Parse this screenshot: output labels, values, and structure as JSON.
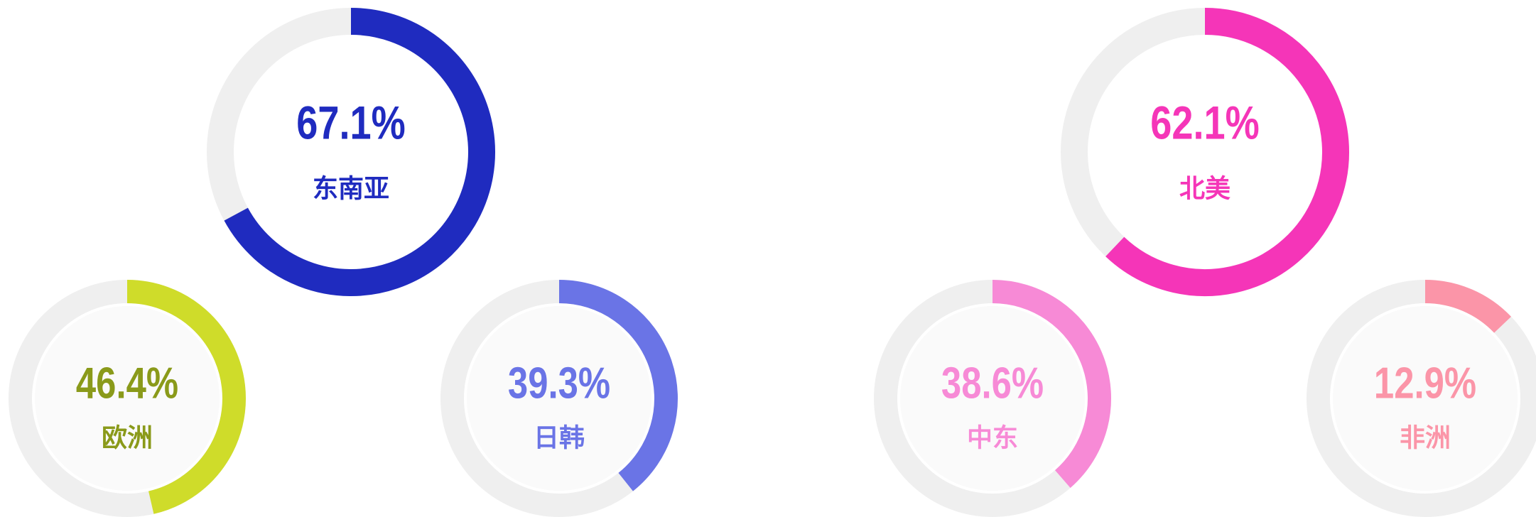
{
  "chart_data": [
    {
      "type": "donut",
      "title": "东南亚",
      "values": [
        67.1
      ],
      "value_labels": [
        "67.1%"
      ],
      "color": "#1f2bbf"
    },
    {
      "type": "donut",
      "title": "北美",
      "values": [
        62.1
      ],
      "value_labels": [
        "62.1%"
      ],
      "color": "#f535b8"
    },
    {
      "type": "donut",
      "title": "欧洲",
      "values": [
        46.4
      ],
      "value_labels": [
        "46.4%"
      ],
      "color": "#cfdc2a",
      "label_color": "#8a9a1a"
    },
    {
      "type": "donut",
      "title": "日韩",
      "values": [
        39.3
      ],
      "value_labels": [
        "39.3%"
      ],
      "color": "#6a74e6"
    },
    {
      "type": "donut",
      "title": "中东",
      "values": [
        38.6
      ],
      "value_labels": [
        "38.6%"
      ],
      "color": "#f78ad6"
    },
    {
      "type": "donut",
      "title": "非洲",
      "values": [
        12.9
      ],
      "value_labels": [
        "12.9%"
      ],
      "color": "#fb95a8"
    }
  ]
}
